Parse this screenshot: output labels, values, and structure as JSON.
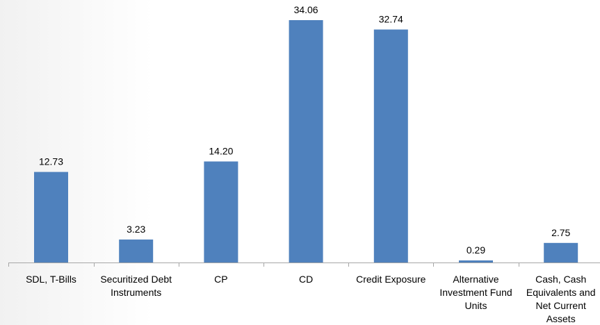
{
  "chart_data": {
    "type": "bar",
    "categories": [
      [
        "SDL, T-Bills"
      ],
      [
        "Securitized Debt",
        "Instruments"
      ],
      [
        "CP"
      ],
      [
        "CD"
      ],
      [
        "Credit Exposure"
      ],
      [
        "Alternative",
        "Investment Fund",
        "Units"
      ],
      [
        "Cash, Cash",
        "Equivalents and",
        "Net Current",
        "Assets"
      ]
    ],
    "values": [
      12.73,
      3.23,
      14.2,
      34.06,
      32.74,
      0.29,
      2.75
    ],
    "value_labels": [
      "12.73",
      "3.23",
      "14.20",
      "34.06",
      "32.74",
      "0.29",
      "2.75"
    ],
    "ylim": [
      0,
      36.5
    ],
    "grid": false,
    "legend": "none",
    "bar_color": "#4f81bd"
  }
}
